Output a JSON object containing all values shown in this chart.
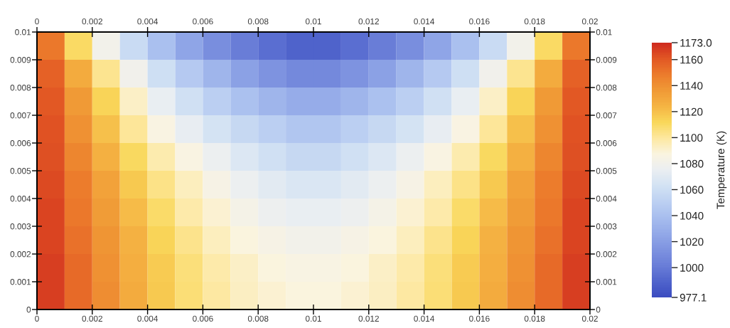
{
  "chart_data": {
    "type": "heatmap",
    "x": [
      0.0005,
      0.0015,
      0.0025,
      0.0035,
      0.0045,
      0.0055,
      0.0065,
      0.0075,
      0.0085,
      0.0095,
      0.0105,
      0.0115,
      0.0125,
      0.0135,
      0.0145,
      0.0155,
      0.0165,
      0.0175,
      0.0185,
      0.0195
    ],
    "y": [
      0.0095,
      0.0085,
      0.0075,
      0.0065,
      0.0055,
      0.0045,
      0.0035,
      0.0025,
      0.0015,
      0.0005
    ],
    "cells": [
      [
        1150,
        1110,
        1081,
        1058,
        1040,
        1024,
        1011,
        1001,
        994,
        989,
        989,
        994,
        1001,
        1011,
        1024,
        1040,
        1058,
        1081,
        1110,
        1150
      ],
      [
        1157,
        1128,
        1102,
        1080,
        1061,
        1046,
        1033,
        1022,
        1014,
        1008,
        1008,
        1014,
        1022,
        1033,
        1046,
        1061,
        1080,
        1102,
        1128,
        1157
      ],
      [
        1160,
        1136,
        1113,
        1092,
        1075,
        1062,
        1050,
        1041,
        1033,
        1028,
        1028,
        1033,
        1041,
        1050,
        1062,
        1075,
        1092,
        1113,
        1136,
        1160
      ],
      [
        1162,
        1140,
        1120,
        1101,
        1086,
        1074,
        1064,
        1056,
        1050,
        1044,
        1044,
        1050,
        1056,
        1064,
        1074,
        1086,
        1101,
        1120,
        1140,
        1162
      ],
      [
        1163,
        1144,
        1126,
        1111,
        1097,
        1086,
        1076,
        1068,
        1062,
        1056,
        1056,
        1062,
        1068,
        1076,
        1086,
        1097,
        1111,
        1126,
        1144,
        1163
      ],
      [
        1164,
        1148,
        1132,
        1117,
        1104,
        1094,
        1084,
        1076,
        1071,
        1067,
        1067,
        1071,
        1076,
        1084,
        1094,
        1104,
        1117,
        1132,
        1148,
        1164
      ],
      [
        1166,
        1150,
        1135,
        1121,
        1109,
        1098,
        1090,
        1082,
        1077,
        1075,
        1075,
        1077,
        1082,
        1090,
        1098,
        1109,
        1121,
        1135,
        1150,
        1166
      ],
      [
        1166,
        1152,
        1138,
        1125,
        1113,
        1103,
        1094,
        1088,
        1084,
        1081,
        1081,
        1084,
        1088,
        1094,
        1103,
        1113,
        1125,
        1138,
        1152,
        1166
      ],
      [
        1167,
        1154,
        1140,
        1127,
        1116,
        1106,
        1098,
        1092,
        1088,
        1085,
        1085,
        1088,
        1092,
        1098,
        1106,
        1116,
        1127,
        1140,
        1154,
        1167
      ],
      [
        1167,
        1154,
        1141,
        1128,
        1117,
        1107,
        1099,
        1093,
        1090,
        1088,
        1088,
        1090,
        1093,
        1099,
        1107,
        1117,
        1128,
        1141,
        1154,
        1167
      ]
    ],
    "xlim": [
      0,
      0.02
    ],
    "xticks": [
      0,
      0.002,
      0.004,
      0.006,
      0.008,
      0.01,
      0.012,
      0.014,
      0.016,
      0.018,
      0.02
    ],
    "x2lim": [
      0,
      0.02
    ],
    "x2ticks": [
      0,
      0.002,
      0.004,
      0.006,
      0.008,
      0.01,
      0.012,
      0.014,
      0.016,
      0.018,
      0.02
    ],
    "ylim": [
      0,
      0.01
    ],
    "yticks": [
      0,
      0.001,
      0.002,
      0.003,
      0.004,
      0.005,
      0.006,
      0.007,
      0.008,
      0.009,
      0.01
    ],
    "y2lim": [
      0,
      0.01
    ],
    "y2ticks": [
      0,
      0.001,
      0.002,
      0.003,
      0.004,
      0.005,
      0.006,
      0.007,
      0.008,
      0.009,
      0.01
    ],
    "clabel": "Temperature (K)",
    "clim": [
      977.1,
      1173.0
    ],
    "cticks": [
      {
        "value": 977.1,
        "label": "977.1"
      },
      1000,
      1020,
      1040,
      1060,
      1080,
      1100,
      1120,
      1140,
      1160,
      {
        "value": 1173.0,
        "label": "1173.0"
      }
    ],
    "colors": [
      "#3b4cc0",
      "#5064cc",
      "#6a7ed8",
      "#7e93e0",
      "#93a9e8",
      "#a7bdee",
      "#bcd0f2",
      "#d2e2f3",
      "#eaeef2",
      "#faf4e0",
      "#fde8a0",
      "#f9d85a",
      "#f5b443",
      "#f09a36",
      "#ec7c2c",
      "#e25824",
      "#cf2a1e"
    ]
  }
}
